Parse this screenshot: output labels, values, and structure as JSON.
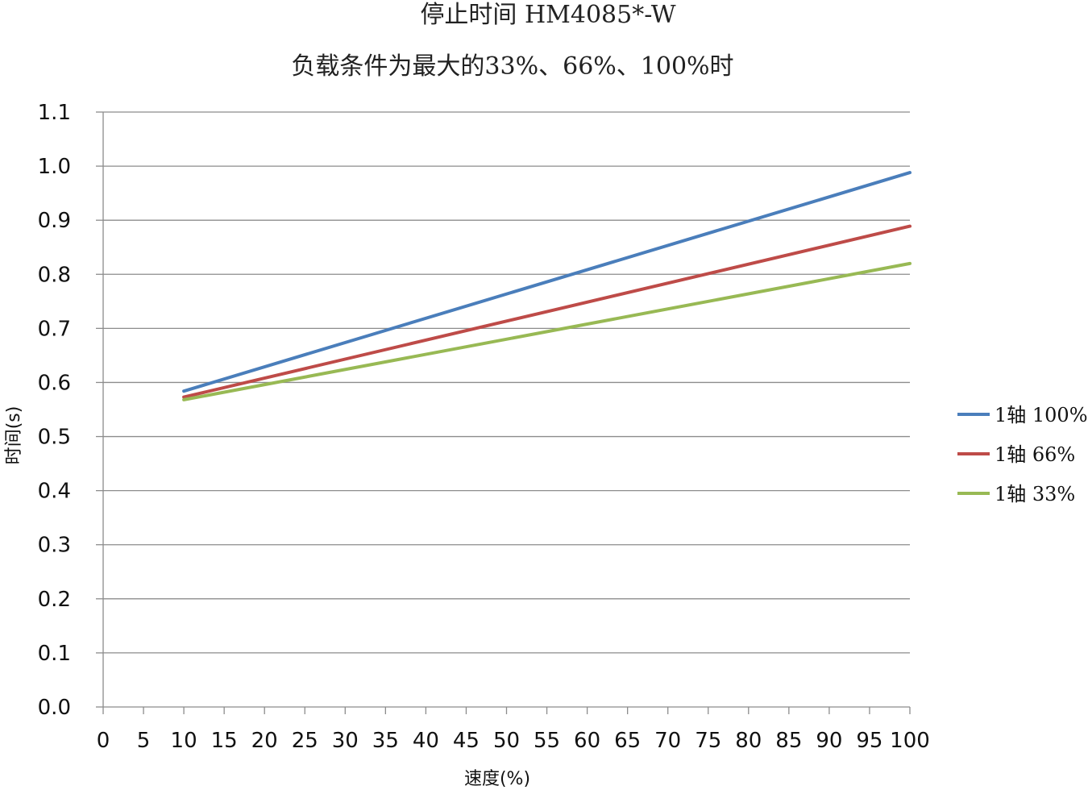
{
  "chart_data": {
    "type": "line",
    "title": "停止时间 HM4085*-W",
    "subtitle": "负载条件为最大的33%、66%、100%时",
    "xlabel": "速度(%)",
    "ylabel": "时间(s)",
    "xlim": [
      0,
      100
    ],
    "ylim": [
      0.0,
      1.1
    ],
    "x_ticks": [
      "0",
      "5",
      "10",
      "15",
      "20",
      "25",
      "30",
      "35",
      "40",
      "45",
      "50",
      "55",
      "60",
      "65",
      "70",
      "75",
      "80",
      "85",
      "90",
      "95",
      "100"
    ],
    "y_ticks": [
      "0.0",
      "0.1",
      "0.2",
      "0.3",
      "0.4",
      "0.5",
      "0.6",
      "0.7",
      "0.8",
      "0.9",
      "1.0",
      "1.1"
    ],
    "grid": "horizontal",
    "legend_position": "right",
    "x": [
      10,
      100
    ],
    "series": [
      {
        "name": "1轴 100%",
        "color": "#4a7ebb",
        "values": [
          0.584,
          0.988
        ]
      },
      {
        "name": "1轴 66%",
        "color": "#be4b48",
        "values": [
          0.573,
          0.889
        ]
      },
      {
        "name": "1轴 33%",
        "color": "#98b954",
        "values": [
          0.568,
          0.82
        ]
      }
    ]
  }
}
